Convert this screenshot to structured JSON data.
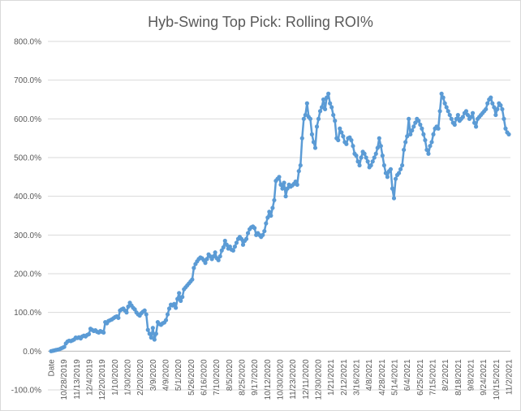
{
  "chart_data": {
    "type": "line",
    "title": "Hyb-Swing Top Pick: Rolling ROI%",
    "xlabel": "",
    "ylabel": "",
    "ylim": [
      -100,
      800
    ],
    "y_ticks": [
      "-100.0%",
      "0.0%",
      "100.0%",
      "200.0%",
      "300.0%",
      "400.0%",
      "500.0%",
      "600.0%",
      "700.0%",
      "800.0%"
    ],
    "x_tick_labels": [
      "Date",
      "10/28/2019",
      "11/13/2019",
      "12/4/2019",
      "12/20/2019",
      "1/10/2020",
      "1/30/2020",
      "2/20/2020",
      "3/9/2020",
      "4/9/2020",
      "5/1/2020",
      "5/26/2020",
      "6/16/2020",
      "7/10/2020",
      "8/5/2020",
      "8/25/2020",
      "9/17/2020",
      "10/12/2020",
      "10/30/2020",
      "11/23/2020",
      "12/11/2020",
      "12/30/2020",
      "1/21/2021",
      "2/12/2021",
      "3/16/2021",
      "4/8/2021",
      "4/28/2021",
      "5/14/2021",
      "6/4/2021",
      "6/25/2021",
      "7/15/2021",
      "8/2/2021",
      "8/18/2021",
      "9/8/2021",
      "9/24/2021",
      "10/15/2021",
      "11/2/2021"
    ],
    "series": [
      {
        "name": "Rolling ROI%",
        "color": "#5b9bd5",
        "values": [
          0,
          1,
          2,
          3,
          4,
          5,
          7,
          9,
          11,
          20,
          25,
          27,
          26,
          28,
          30,
          35,
          34,
          36,
          33,
          38,
          40,
          38,
          42,
          44,
          58,
          55,
          52,
          54,
          50,
          48,
          52,
          50,
          48,
          75,
          72,
          78,
          80,
          82,
          85,
          88,
          90,
          86,
          105,
          108,
          110,
          105,
          100,
          115,
          125,
          118,
          112,
          108,
          100,
          95,
          92,
          98,
          102,
          105,
          95,
          55,
          45,
          35,
          60,
          30,
          45,
          75,
          70,
          68,
          72,
          74,
          80,
          95,
          110,
          120,
          118,
          122,
          112,
          135,
          150,
          130,
          140,
          160,
          165,
          170,
          175,
          180,
          185,
          215,
          225,
          232,
          238,
          242,
          240,
          235,
          228,
          238,
          250,
          245,
          238,
          245,
          255,
          240,
          235,
          245,
          260,
          268,
          285,
          275,
          265,
          270,
          262,
          260,
          270,
          280,
          290,
          295,
          290,
          275,
          285,
          290,
          305,
          315,
          320,
          322,
          318,
          300,
          305,
          300,
          295,
          300,
          310,
          330,
          345,
          360,
          350,
          370,
          390,
          440,
          445,
          450,
          430,
          420,
          435,
          400,
          420,
          430,
          425,
          428,
          432,
          438,
          430,
          465,
          480,
          550,
          600,
          610,
          640,
          605,
          600,
          560,
          540,
          525,
          580,
          600,
          620,
          630,
          650,
          625,
          655,
          665,
          640,
          630,
          610,
          595,
          550,
          545,
          575,
          565,
          555,
          540,
          535,
          550,
          552,
          545,
          530,
          510,
          505,
          490,
          480,
          500,
          515,
          510,
          500,
          490,
          475,
          480,
          490,
          500,
          510,
          525,
          550,
          530,
          505,
          480,
          460,
          450,
          465,
          470,
          420,
          395,
          445,
          455,
          460,
          470,
          480,
          520,
          540,
          555,
          600,
          560,
          570,
          580,
          590,
          600,
          595,
          585,
          575,
          560,
          545,
          520,
          510,
          530,
          540,
          560,
          575,
          580,
          575,
          620,
          665,
          655,
          640,
          630,
          620,
          610,
          600,
          590,
          585,
          600,
          610,
          595,
          600,
          605,
          615,
          620,
          610,
          600,
          605,
          615,
          590,
          580,
          600,
          605,
          610,
          615,
          620,
          625,
          640,
          650,
          655,
          640,
          630,
          610,
          625,
          640,
          635,
          625,
          600,
          575,
          565,
          560
        ]
      }
    ],
    "grid": true,
    "legend": "none"
  }
}
